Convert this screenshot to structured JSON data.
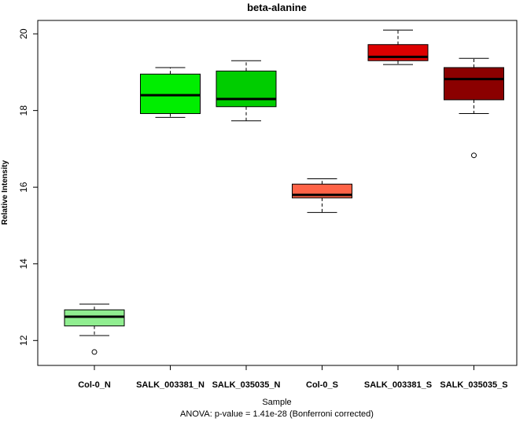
{
  "chart_data": {
    "type": "box",
    "title": "beta-alanine",
    "xlabel": "Sample",
    "ylabel": "Relative Intensity",
    "ylim": [
      11.35,
      20.35
    ],
    "yticks": [
      12,
      14,
      16,
      18,
      20
    ],
    "footnote": "ANOVA: p-value = 1.41e-28 (Bonferroni corrected)",
    "grid": false,
    "categories": [
      "Col-0_N",
      "SALK_003381_N",
      "SALK_035035_N",
      "Col-0_S",
      "SALK_003381_S",
      "SALK_035035_S"
    ],
    "boxes": [
      {
        "whisker_low": 12.13,
        "q1": 12.38,
        "median": 12.62,
        "q3": 12.8,
        "whisker_high": 12.95,
        "outliers": [
          11.7
        ],
        "color": "#90ee90"
      },
      {
        "whisker_low": 17.82,
        "q1": 17.92,
        "median": 18.4,
        "q3": 18.95,
        "whisker_high": 19.12,
        "outliers": [],
        "color": "#00ee00"
      },
      {
        "whisker_low": 17.73,
        "q1": 18.1,
        "median": 18.3,
        "q3": 19.03,
        "whisker_high": 19.3,
        "outliers": [],
        "color": "#00cd00"
      },
      {
        "whisker_low": 15.34,
        "q1": 15.72,
        "median": 15.8,
        "q3": 16.08,
        "whisker_high": 16.22,
        "outliers": [],
        "color": "#ff6347"
      },
      {
        "whisker_low": 19.2,
        "q1": 19.3,
        "median": 19.4,
        "q3": 19.72,
        "whisker_high": 20.1,
        "outliers": [],
        "color": "#dd0000"
      },
      {
        "whisker_low": 17.92,
        "q1": 18.28,
        "median": 18.82,
        "q3": 19.12,
        "whisker_high": 19.36,
        "outliers": [
          16.83
        ],
        "color": "#8b0000"
      }
    ]
  }
}
